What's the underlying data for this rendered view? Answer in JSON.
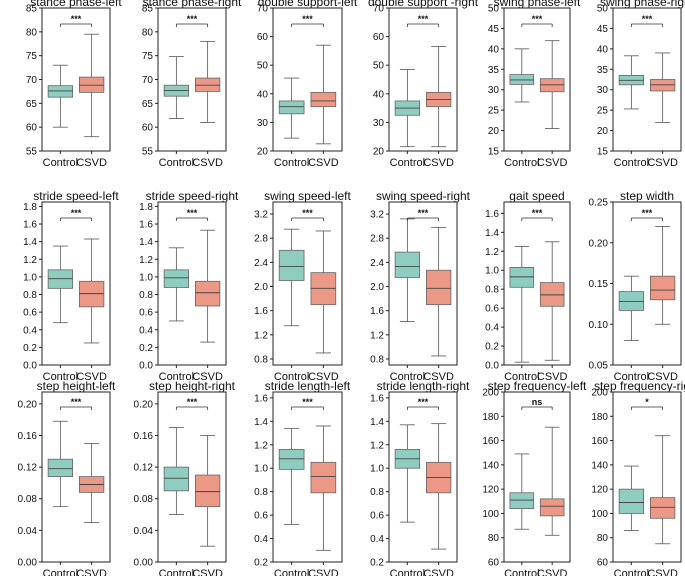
{
  "colors": {
    "control": "#8fcdc1",
    "csvd": "#ec9886",
    "axis": "#222222",
    "whisker": "#555555"
  },
  "chart_data": [
    {
      "type": "box",
      "title": "stance  phase-left",
      "categories": [
        "Control",
        "CSVD"
      ],
      "ylim": [
        55,
        85
      ],
      "yticks": [
        55,
        60,
        65,
        70,
        75,
        80,
        85
      ],
      "ytick_labels": [
        "55",
        "60",
        "65",
        "70",
        "75",
        "80",
        "85"
      ],
      "significance": "***",
      "boxes": [
        {
          "min": 60,
          "q1": 66.3,
          "median": 67.6,
          "q3": 68.7,
          "max": 73
        },
        {
          "min": 58,
          "q1": 67.3,
          "median": 68.8,
          "q3": 70.5,
          "max": 79.5
        }
      ]
    },
    {
      "type": "box",
      "title": "stance phase-right",
      "categories": [
        "Control",
        "CSVD"
      ],
      "ylim": [
        55,
        85
      ],
      "yticks": [
        55,
        60,
        65,
        70,
        75,
        80,
        85
      ],
      "ytick_labels": [
        "55",
        "60",
        "65",
        "70",
        "75",
        "80",
        "85"
      ],
      "significance": "***",
      "boxes": [
        {
          "min": 61.8,
          "q1": 66.5,
          "median": 67.7,
          "q3": 68.8,
          "max": 74.8
        },
        {
          "min": 61,
          "q1": 67.5,
          "median": 68.8,
          "q3": 70.3,
          "max": 78
        }
      ]
    },
    {
      "type": "box",
      "title": "double support-left",
      "categories": [
        "Control",
        "CSVD"
      ],
      "ylim": [
        20,
        70
      ],
      "yticks": [
        20,
        30,
        40,
        50,
        60,
        70
      ],
      "ytick_labels": [
        "20",
        "30",
        "40",
        "50",
        "60",
        "70"
      ],
      "significance": "***",
      "boxes": [
        {
          "min": 24.5,
          "q1": 33,
          "median": 35.5,
          "q3": 37.5,
          "max": 45.5
        },
        {
          "min": 22.5,
          "q1": 35.5,
          "median": 37.5,
          "q3": 40.5,
          "max": 57
        }
      ]
    },
    {
      "type": "box",
      "title": "double support -right",
      "categories": [
        "Control",
        "CSVD"
      ],
      "ylim": [
        20,
        70
      ],
      "yticks": [
        20,
        30,
        40,
        50,
        60,
        70
      ],
      "ytick_labels": [
        "20",
        "30",
        "40",
        "50",
        "60",
        "70"
      ],
      "significance": "***",
      "boxes": [
        {
          "min": 21.5,
          "q1": 32.5,
          "median": 35,
          "q3": 37.5,
          "max": 48.5
        },
        {
          "min": 21.5,
          "q1": 35.5,
          "median": 38,
          "q3": 40.5,
          "max": 56.5
        }
      ]
    },
    {
      "type": "box",
      "title": "swing phase-left",
      "categories": [
        "Control",
        "CSVD"
      ],
      "ylim": [
        15,
        50
      ],
      "yticks": [
        15,
        20,
        25,
        30,
        35,
        40,
        45,
        50
      ],
      "ytick_labels": [
        "15",
        "20",
        "25",
        "30",
        "35",
        "40",
        "45",
        "50"
      ],
      "significance": "***",
      "boxes": [
        {
          "min": 27,
          "q1": 31.3,
          "median": 32.4,
          "q3": 33.7,
          "max": 40
        },
        {
          "min": 20.5,
          "q1": 29.5,
          "median": 31.2,
          "q3": 32.7,
          "max": 42
        }
      ]
    },
    {
      "type": "box",
      "title": "swing phase-right",
      "categories": [
        "Control",
        "CSVD"
      ],
      "ylim": [
        15,
        50
      ],
      "yticks": [
        15,
        20,
        25,
        30,
        35,
        40,
        45,
        50
      ],
      "ytick_labels": [
        "15",
        "20",
        "25",
        "30",
        "35",
        "40",
        "45",
        "50"
      ],
      "significance": "***",
      "boxes": [
        {
          "min": 25.3,
          "q1": 31.2,
          "median": 32.3,
          "q3": 33.5,
          "max": 38.3
        },
        {
          "min": 22,
          "q1": 29.7,
          "median": 31.2,
          "q3": 32.5,
          "max": 39
        }
      ]
    },
    {
      "type": "box",
      "title": "stride speed-left",
      "categories": [
        "Control",
        "CSVD"
      ],
      "ylim": [
        0,
        1.85
      ],
      "yticks": [
        0,
        0.2,
        0.4,
        0.6,
        0.8,
        1.0,
        1.2,
        1.4,
        1.6,
        1.8
      ],
      "ytick_labels": [
        "0.0",
        "0.2",
        "0.4",
        "0.6",
        "0.8",
        "1.0",
        "1.2",
        "1.4",
        "1.6",
        "1.8"
      ],
      "significance": "***",
      "boxes": [
        {
          "min": 0.48,
          "q1": 0.87,
          "median": 0.98,
          "q3": 1.08,
          "max": 1.35
        },
        {
          "min": 0.25,
          "q1": 0.66,
          "median": 0.81,
          "q3": 0.95,
          "max": 1.43
        }
      ]
    },
    {
      "type": "box",
      "title": "stride speed-right",
      "categories": [
        "Control",
        "CSVD"
      ],
      "ylim": [
        0,
        1.85
      ],
      "yticks": [
        0,
        0.2,
        0.4,
        0.6,
        0.8,
        1.0,
        1.2,
        1.4,
        1.6,
        1.8
      ],
      "ytick_labels": [
        "0.0",
        "0.2",
        "0.4",
        "0.6",
        "0.8",
        "1.0",
        "1.2",
        "1.4",
        "1.6",
        "1.8"
      ],
      "significance": "***",
      "boxes": [
        {
          "min": 0.5,
          "q1": 0.88,
          "median": 0.99,
          "q3": 1.08,
          "max": 1.33
        },
        {
          "min": 0.26,
          "q1": 0.67,
          "median": 0.82,
          "q3": 0.95,
          "max": 1.53
        }
      ]
    },
    {
      "type": "box",
      "title": "swing speed-left",
      "categories": [
        "Control",
        "CSVD"
      ],
      "ylim": [
        0.7,
        3.4
      ],
      "yticks": [
        0.8,
        1.2,
        1.6,
        2.0,
        2.4,
        2.8,
        3.2
      ],
      "ytick_labels": [
        "0.8",
        "1.2",
        "1.6",
        "2.0",
        "2.4",
        "2.8",
        "3.2"
      ],
      "significance": "***",
      "boxes": [
        {
          "min": 1.35,
          "q1": 2.1,
          "median": 2.33,
          "q3": 2.6,
          "max": 2.95
        },
        {
          "min": 0.9,
          "q1": 1.7,
          "median": 1.97,
          "q3": 2.23,
          "max": 2.92
        }
      ]
    },
    {
      "type": "box",
      "title": "swing speed-right",
      "categories": [
        "Control",
        "CSVD"
      ],
      "ylim": [
        0.7,
        3.4
      ],
      "yticks": [
        0.8,
        1.2,
        1.6,
        2.0,
        2.4,
        2.8,
        3.2
      ],
      "ytick_labels": [
        "0.8",
        "1.2",
        "1.6",
        "2.0",
        "2.4",
        "2.8",
        "3.2"
      ],
      "significance": "***",
      "boxes": [
        {
          "min": 1.42,
          "q1": 2.15,
          "median": 2.33,
          "q3": 2.57,
          "max": 3.12
        },
        {
          "min": 0.85,
          "q1": 1.7,
          "median": 1.97,
          "q3": 2.27,
          "max": 2.98
        }
      ]
    },
    {
      "type": "box",
      "title": "gait speed",
      "categories": [
        "Control",
        "CSVD"
      ],
      "ylim": [
        0,
        1.72
      ],
      "yticks": [
        0,
        0.2,
        0.4,
        0.6,
        0.8,
        1.0,
        1.2,
        1.4,
        1.6
      ],
      "ytick_labels": [
        "0.0",
        "0.2",
        "0.4",
        "0.6",
        "0.8",
        "1.0",
        "1.2",
        "1.4",
        "1.6"
      ],
      "significance": "***",
      "boxes": [
        {
          "min": 0.03,
          "q1": 0.82,
          "median": 0.93,
          "q3": 1.03,
          "max": 1.25
        },
        {
          "min": 0.05,
          "q1": 0.62,
          "median": 0.74,
          "q3": 0.87,
          "max": 1.3
        }
      ]
    },
    {
      "type": "box",
      "title": "step width",
      "categories": [
        "Control",
        "CSVD"
      ],
      "ylim": [
        0.05,
        0.25
      ],
      "yticks": [
        0.05,
        0.1,
        0.15,
        0.2,
        0.25
      ],
      "ytick_labels": [
        "0.05",
        "0.10",
        "0.15",
        "0.20",
        "0.25"
      ],
      "significance": "***",
      "boxes": [
        {
          "min": 0.08,
          "q1": 0.117,
          "median": 0.128,
          "q3": 0.14,
          "max": 0.159
        },
        {
          "min": 0.1,
          "q1": 0.13,
          "median": 0.142,
          "q3": 0.159,
          "max": 0.22
        }
      ]
    },
    {
      "type": "box",
      "title": "step height-left",
      "categories": [
        "Control",
        "CSVD"
      ],
      "ylim": [
        0,
        0.215
      ],
      "yticks": [
        0,
        0.04,
        0.08,
        0.12,
        0.16,
        0.2
      ],
      "ytick_labels": [
        "0.00",
        "0.04",
        "0.08",
        "0.12",
        "0.16",
        "0.20"
      ],
      "significance": "***",
      "boxes": [
        {
          "min": 0.07,
          "q1": 0.108,
          "median": 0.118,
          "q3": 0.13,
          "max": 0.178
        },
        {
          "min": 0.05,
          "q1": 0.088,
          "median": 0.098,
          "q3": 0.108,
          "max": 0.15
        }
      ]
    },
    {
      "type": "box",
      "title": "step height-right",
      "categories": [
        "Control",
        "CSVD"
      ],
      "ylim": [
        0,
        0.215
      ],
      "yticks": [
        0,
        0.04,
        0.08,
        0.12,
        0.16,
        0.2
      ],
      "ytick_labels": [
        "0.00",
        "0.04",
        "0.08",
        "0.12",
        "0.16",
        "0.20"
      ],
      "significance": "***",
      "boxes": [
        {
          "min": 0.06,
          "q1": 0.09,
          "median": 0.106,
          "q3": 0.12,
          "max": 0.17
        },
        {
          "min": 0.02,
          "q1": 0.07,
          "median": 0.089,
          "q3": 0.11,
          "max": 0.16
        }
      ]
    },
    {
      "type": "box",
      "title": "stride length-left",
      "categories": [
        "Control",
        "CSVD"
      ],
      "ylim": [
        0.2,
        1.65
      ],
      "yticks": [
        0.2,
        0.4,
        0.6,
        0.8,
        1.0,
        1.2,
        1.4,
        1.6
      ],
      "ytick_labels": [
        "0.2",
        "0.4",
        "0.6",
        "0.8",
        "1.0",
        "1.2",
        "1.4",
        "1.6"
      ],
      "significance": "***",
      "boxes": [
        {
          "min": 0.52,
          "q1": 0.99,
          "median": 1.08,
          "q3": 1.16,
          "max": 1.34
        },
        {
          "min": 0.3,
          "q1": 0.79,
          "median": 0.93,
          "q3": 1.05,
          "max": 1.36
        }
      ]
    },
    {
      "type": "box",
      "title": "stride length-right",
      "categories": [
        "Control",
        "CSVD"
      ],
      "ylim": [
        0.2,
        1.65
      ],
      "yticks": [
        0.2,
        0.4,
        0.6,
        0.8,
        1.0,
        1.2,
        1.4,
        1.6
      ],
      "ytick_labels": [
        "0.2",
        "0.4",
        "0.6",
        "0.8",
        "1.0",
        "1.2",
        "1.4",
        "1.6"
      ],
      "significance": "***",
      "boxes": [
        {
          "min": 0.54,
          "q1": 1.0,
          "median": 1.08,
          "q3": 1.16,
          "max": 1.37
        },
        {
          "min": 0.31,
          "q1": 0.79,
          "median": 0.92,
          "q3": 1.05,
          "max": 1.38
        }
      ]
    },
    {
      "type": "box",
      "title": "step frequency-left",
      "categories": [
        "Control",
        "CSVD"
      ],
      "ylim": [
        60,
        200
      ],
      "yticks": [
        60,
        80,
        100,
        120,
        140,
        160,
        180,
        200
      ],
      "ytick_labels": [
        "60",
        "80",
        "100",
        "120",
        "140",
        "160",
        "180",
        "200"
      ],
      "significance": "ns",
      "boxes": [
        {
          "min": 87,
          "q1": 104,
          "median": 111,
          "q3": 117,
          "max": 149
        },
        {
          "min": 82,
          "q1": 98,
          "median": 106,
          "q3": 112,
          "max": 171
        }
      ]
    },
    {
      "type": "box",
      "title": "step frequency-right",
      "categories": [
        "Control",
        "CSVD"
      ],
      "ylim": [
        60,
        200
      ],
      "yticks": [
        60,
        80,
        100,
        120,
        140,
        160,
        180,
        200
      ],
      "ytick_labels": [
        "60",
        "80",
        "100",
        "120",
        "140",
        "160",
        "180",
        "200"
      ],
      "significance": "*",
      "boxes": [
        {
          "min": 86,
          "q1": 100,
          "median": 109,
          "q3": 120,
          "max": 139
        },
        {
          "min": 75,
          "q1": 96,
          "median": 105,
          "q3": 113,
          "max": 164
        }
      ]
    }
  ]
}
